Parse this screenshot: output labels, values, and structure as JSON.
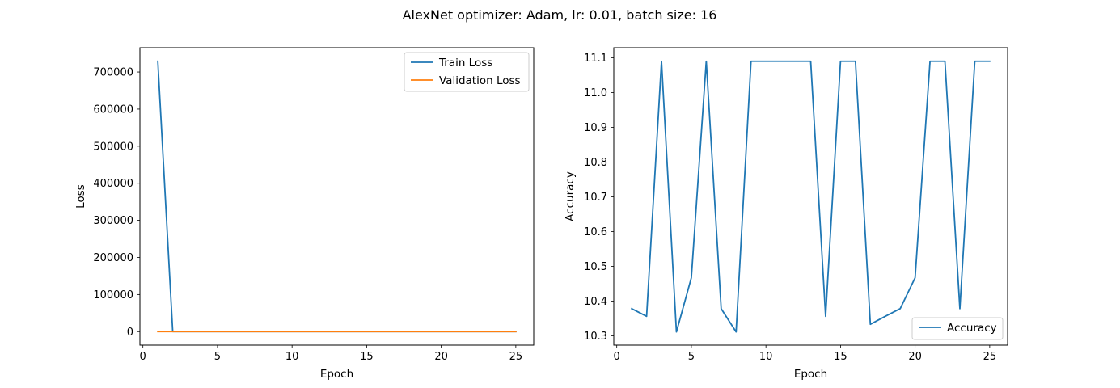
{
  "figure": {
    "suptitle": "AlexNet optimizer: Adam, lr: 0.01, batch size: 16"
  },
  "colors": {
    "series_blue": "#1f77b4",
    "series_orange": "#ff7f0e",
    "frame": "#000000",
    "legend_border": "#cccccc"
  },
  "chart_data": [
    {
      "type": "line",
      "title": "",
      "xlabel": "Epoch",
      "ylabel": "Loss",
      "xlim": [
        -0.2,
        26.2
      ],
      "ylim": [
        -36500,
        765500
      ],
      "xticks": [
        0,
        5,
        10,
        15,
        20,
        25
      ],
      "yticks": [
        0,
        100000,
        200000,
        300000,
        400000,
        500000,
        600000,
        700000
      ],
      "grid": false,
      "legend_position": "upper right",
      "x": [
        1,
        2,
        3,
        4,
        5,
        6,
        7,
        8,
        9,
        10,
        11,
        12,
        13,
        14,
        15,
        16,
        17,
        18,
        19,
        20,
        21,
        22,
        23,
        24,
        25
      ],
      "series": [
        {
          "name": "Train Loss",
          "color": "#1f77b4",
          "values": [
            729000,
            2.5,
            2.3,
            2.3,
            2.3,
            2.3,
            2.3,
            2.3,
            2.3,
            2.3,
            2.3,
            2.3,
            2.3,
            2.3,
            2.3,
            2.3,
            2.3,
            2.3,
            2.3,
            2.3,
            2.3,
            2.3,
            2.3,
            2.3,
            2.3
          ]
        },
        {
          "name": "Validation Loss",
          "color": "#ff7f0e",
          "values": [
            2.4,
            2.3,
            2.3,
            2.3,
            2.3,
            2.3,
            2.3,
            2.3,
            2.3,
            2.3,
            2.3,
            2.3,
            2.3,
            2.3,
            2.3,
            2.3,
            2.3,
            2.3,
            2.3,
            2.3,
            2.3,
            2.3,
            2.3,
            2.3,
            2.3
          ]
        }
      ]
    },
    {
      "type": "line",
      "title": "",
      "xlabel": "Epoch",
      "ylabel": "Accuracy",
      "xlim": [
        -0.2,
        26.2
      ],
      "ylim": [
        10.273,
        11.129
      ],
      "xticks": [
        0,
        5,
        10,
        15,
        20,
        25
      ],
      "yticks": [
        10.3,
        10.4,
        10.5,
        10.6,
        10.7,
        10.8,
        10.9,
        11.0,
        11.1
      ],
      "ytick_labels": [
        "10.3",
        "10.4",
        "10.5",
        "10.6",
        "10.7",
        "10.8",
        "10.9",
        "11.0",
        "11.1"
      ],
      "grid": false,
      "legend_position": "lower right",
      "x": [
        1,
        2,
        3,
        4,
        5,
        6,
        7,
        8,
        9,
        10,
        11,
        12,
        13,
        14,
        15,
        16,
        17,
        18,
        19,
        20,
        21,
        22,
        23,
        24,
        25
      ],
      "series": [
        {
          "name": "Accuracy",
          "color": "#1f77b4",
          "values": [
            10.378,
            10.356,
            11.09,
            10.311,
            10.467,
            11.09,
            10.378,
            10.311,
            11.09,
            11.09,
            11.09,
            11.09,
            11.09,
            10.356,
            11.09,
            11.09,
            10.333,
            10.356,
            10.378,
            10.467,
            11.09,
            11.09,
            10.378,
            11.09,
            11.09
          ]
        }
      ]
    }
  ]
}
